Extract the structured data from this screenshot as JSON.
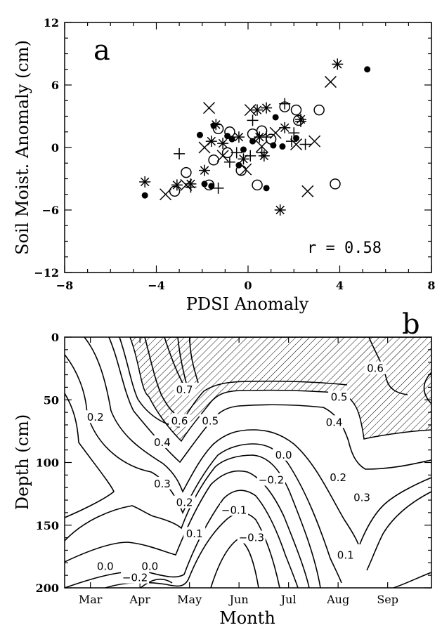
{
  "chart_data": [
    {
      "type": "scatter",
      "panel_label": "a",
      "xlabel": "PDSI Anomaly",
      "ylabel": "Soil Moist. Anomaly (cm)",
      "xlim": [
        -8,
        8
      ],
      "ylim": [
        -12,
        12
      ],
      "xticks": [
        -8,
        -4,
        0,
        4,
        8
      ],
      "yticks": [
        -12,
        -6,
        0,
        6,
        12
      ],
      "annotation": "r = 0.58",
      "grid": false,
      "series": [
        {
          "marker": "filled-circle",
          "points": [
            [
              -4.5,
              -4.6
            ],
            [
              -2.1,
              1.2
            ],
            [
              -1.9,
              -3.5
            ],
            [
              -1.6,
              -3.7
            ],
            [
              -1.5,
              2.1
            ],
            [
              -0.9,
              1.1
            ],
            [
              -0.7,
              0.8
            ],
            [
              -0.4,
              -1.7
            ],
            [
              -0.2,
              -0.2
            ],
            [
              0.2,
              0.6
            ],
            [
              0.8,
              -3.9
            ],
            [
              1.1,
              0.2
            ],
            [
              1.2,
              2.9
            ],
            [
              1.5,
              0.1
            ],
            [
              2.1,
              0.9
            ],
            [
              5.2,
              7.5
            ]
          ]
        },
        {
          "marker": "open-circle",
          "points": [
            [
              -3.2,
              -4.2
            ],
            [
              -2.7,
              -2.4
            ],
            [
              -1.7,
              -3.6
            ],
            [
              -1.5,
              -1.2
            ],
            [
              -1.3,
              1.8
            ],
            [
              -0.8,
              1.5
            ],
            [
              -0.9,
              -0.5
            ],
            [
              -0.3,
              -2.2
            ],
            [
              0.2,
              1.3
            ],
            [
              0.4,
              -3.6
            ],
            [
              0.6,
              1.6
            ],
            [
              1.0,
              0.8
            ],
            [
              1.6,
              3.9
            ],
            [
              2.1,
              3.6
            ],
            [
              2.2,
              2.6
            ],
            [
              3.1,
              3.6
            ],
            [
              3.8,
              -3.5
            ]
          ]
        },
        {
          "marker": "plus",
          "points": [
            [
              -3.0,
              -0.6
            ],
            [
              -2.5,
              -3.8
            ],
            [
              -1.3,
              -3.9
            ],
            [
              -0.8,
              -1.4
            ],
            [
              -0.5,
              -0.5
            ],
            [
              0.1,
              -0.8
            ],
            [
              0.2,
              2.6
            ],
            [
              0.6,
              -0.5
            ],
            [
              0.8,
              1.0
            ],
            [
              1.6,
              4.2
            ],
            [
              1.9,
              0.6
            ],
            [
              2.0,
              1.4
            ],
            [
              2.3,
              2.5
            ],
            [
              2.5,
              0.3
            ]
          ]
        },
        {
          "marker": "cross",
          "points": [
            [
              -3.6,
              -4.5
            ],
            [
              -2.7,
              -3.6
            ],
            [
              -1.9,
              0.0
            ],
            [
              -1.7,
              3.8
            ],
            [
              -1.1,
              -0.8
            ],
            [
              -0.1,
              -2.1
            ],
            [
              0.1,
              3.6
            ],
            [
              0.6,
              0.1
            ],
            [
              1.2,
              1.4
            ],
            [
              2.1,
              0.3
            ],
            [
              2.6,
              -4.2
            ],
            [
              2.9,
              0.6
            ],
            [
              3.6,
              6.3
            ]
          ]
        },
        {
          "marker": "asterisk",
          "points": [
            [
              -4.5,
              -3.3
            ],
            [
              -3.1,
              -3.6
            ],
            [
              -2.5,
              -3.5
            ],
            [
              -1.9,
              -2.2
            ],
            [
              -1.6,
              0.6
            ],
            [
              -1.4,
              2.2
            ],
            [
              -1.1,
              0.4
            ],
            [
              -0.4,
              1.0
            ],
            [
              -0.2,
              -1.1
            ],
            [
              0.4,
              3.6
            ],
            [
              0.5,
              1.0
            ],
            [
              0.7,
              -0.8
            ],
            [
              0.8,
              3.8
            ],
            [
              1.4,
              -6.0
            ],
            [
              1.6,
              1.9
            ],
            [
              2.3,
              2.7
            ],
            [
              3.9,
              8.0
            ]
          ]
        }
      ]
    },
    {
      "type": "contour",
      "panel_label": "b",
      "xlabel": "Month",
      "ylabel": "Depth (cm)",
      "x_categories": [
        "Mar",
        "Apr",
        "May",
        "Jun",
        "Jul",
        "Aug",
        "Sep"
      ],
      "ylim": [
        0,
        200
      ],
      "yticks": [
        0,
        50,
        100,
        150,
        200
      ],
      "hatched_region": "correlation > 0.5",
      "contour_labels": [
        "0.7",
        "0.6",
        "0.5",
        "0.4",
        "0.3",
        "0.2",
        "0.1",
        "0.0",
        "-0.1",
        "-0.2",
        "-0.3"
      ],
      "labels_in_plot": [
        {
          "text": "0.7",
          "month": 4.9,
          "depth": 42
        },
        {
          "text": "0.6",
          "month": 4.8,
          "depth": 67
        },
        {
          "text": "0.5",
          "month": 5.42,
          "depth": 67
        },
        {
          "text": "0.4",
          "month": 4.45,
          "depth": 84
        },
        {
          "text": "0.3",
          "month": 4.45,
          "depth": 117
        },
        {
          "text": "0.2",
          "month": 4.9,
          "depth": 132
        },
        {
          "text": "0.2",
          "month": 3.1,
          "depth": 64
        },
        {
          "text": "0.1",
          "month": 5.1,
          "depth": 157
        },
        {
          "text": "0.0",
          "month": 3.3,
          "depth": 183
        },
        {
          "text": "0.0",
          "month": 4.2,
          "depth": 183
        },
        {
          "text": "-0.2",
          "month": 3.9,
          "depth": 192
        },
        {
          "text": "-0.1",
          "month": 5.9,
          "depth": 138
        },
        {
          "text": "-0.3",
          "month": 6.25,
          "depth": 160
        },
        {
          "text": "-0.2",
          "month": 6.65,
          "depth": 114
        },
        {
          "text": "0.0",
          "month": 6.9,
          "depth": 94
        },
        {
          "text": "0.4",
          "month": 7.92,
          "depth": 68
        },
        {
          "text": "0.5",
          "month": 8.02,
          "depth": 48
        },
        {
          "text": "0.6",
          "month": 8.75,
          "depth": 25
        },
        {
          "text": "0.2",
          "month": 8.0,
          "depth": 112
        },
        {
          "text": "0.3",
          "month": 8.48,
          "depth": 128
        },
        {
          "text": "0.1",
          "month": 8.15,
          "depth": 174
        }
      ]
    }
  ]
}
